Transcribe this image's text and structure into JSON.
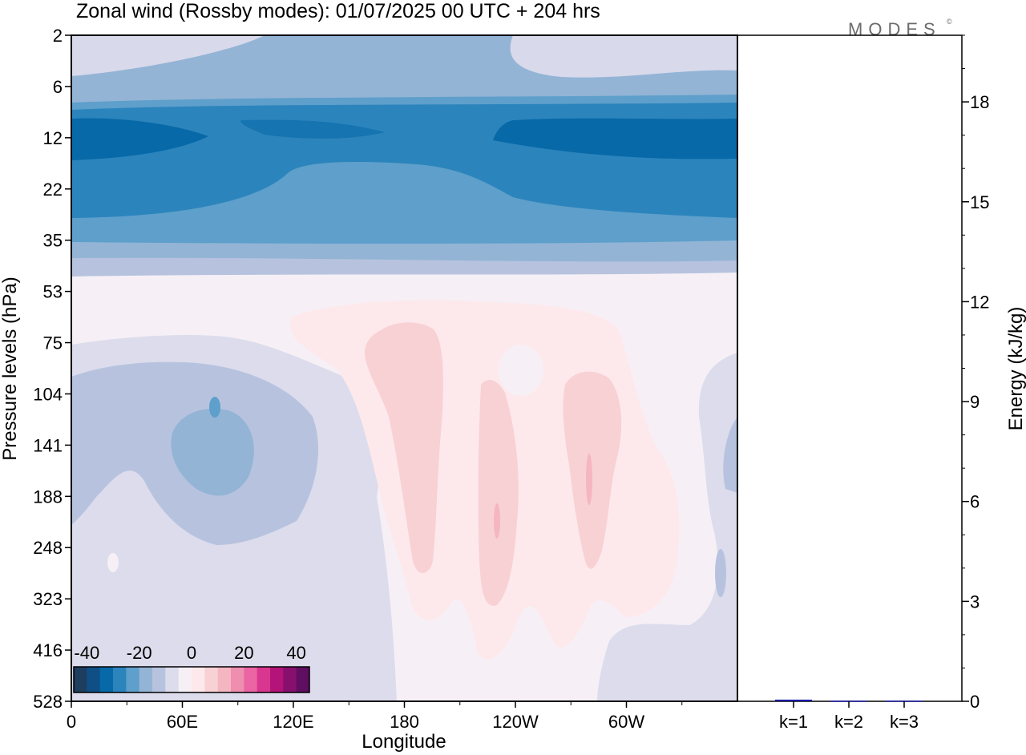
{
  "title": "Zonal wind (Rossby modes):  01/07/2025  00 UTC  + 204 hrs",
  "brand": {
    "text": "MODES",
    "mark": "©"
  },
  "chart_data": [
    {
      "type": "heatmap",
      "name": "zonal-wind-section",
      "xlabel": "Longitude",
      "ylabel": "Pressure levels (hPa)",
      "x_ticks": [
        "0",
        "60E",
        "120E",
        "180",
        "120W",
        "60W"
      ],
      "x_tick_lon": [
        0,
        60,
        120,
        180,
        240,
        300
      ],
      "xlim": [
        0,
        360
      ],
      "y_ticks": [
        "2",
        "6",
        "12",
        "22",
        "35",
        "53",
        "75",
        "104",
        "141",
        "188",
        "248",
        "323",
        "416",
        "528"
      ],
      "y_scale": "level-index",
      "colorbar": {
        "ticks": [
          "-40",
          "-20",
          "0",
          "20",
          "40"
        ],
        "levels": [
          -45,
          -40,
          -35,
          -30,
          -25,
          -20,
          -15,
          -10,
          -5,
          0,
          5,
          10,
          15,
          20,
          25,
          30,
          35,
          40,
          45
        ],
        "colors": [
          "#1d3e5e",
          "#0f4f86",
          "#0869a8",
          "#2c84bc",
          "#5e9fcb",
          "#93b4d5",
          "#b7c3de",
          "#dcdcec",
          "#f6f0f6",
          "#fde9ec",
          "#f8d1d4",
          "#f4b6c1",
          "#f08eb0",
          "#eb64a3",
          "#d9368f",
          "#b4137a",
          "#870f6d",
          "#5f0e61"
        ]
      },
      "regions": [
        {
          "level": "-5..0",
          "lon": [
            0,
            360
          ],
          "p": [
            "2",
            "528"
          ]
        },
        {
          "level": "-15..-10",
          "lon": [
            0,
            360
          ],
          "p": [
            "2",
            "35"
          ]
        },
        {
          "level": "-25..-20",
          "lon": [
            0,
            360
          ],
          "p": [
            "6",
            "35"
          ]
        },
        {
          "level": "-35..-30",
          "lon": [
            0,
            360
          ],
          "p": [
            "8",
            "30"
          ]
        },
        {
          "level": "-40..-35",
          "lon": [
            0,
            360
          ],
          "p": [
            "10",
            "16"
          ]
        },
        {
          "level": "-10..-5",
          "lon": [
            0,
            150
          ],
          "p": [
            "75",
            "528"
          ]
        },
        {
          "level": "-15..-10",
          "lon": [
            50,
            100
          ],
          "p": [
            "104",
            "188"
          ]
        },
        {
          "level": "0..5",
          "lon": [
            115,
            295
          ],
          "p": [
            "60",
            "416"
          ]
        },
        {
          "level": "5..10",
          "lon": [
            160,
            290
          ],
          "p": [
            "75",
            "416"
          ]
        }
      ]
    },
    {
      "type": "bar",
      "name": "energy-per-wavenumber",
      "categories": [
        "k=1",
        "k=2",
        "k=3"
      ],
      "values": [
        0.05,
        0.02,
        0.02
      ],
      "ylabel": "Energy (kJ/kg)",
      "ylim": [
        0,
        20
      ],
      "y_ticks": [
        0,
        3,
        6,
        9,
        12,
        15,
        18
      ],
      "bar_color": "#1a1aa6"
    }
  ]
}
